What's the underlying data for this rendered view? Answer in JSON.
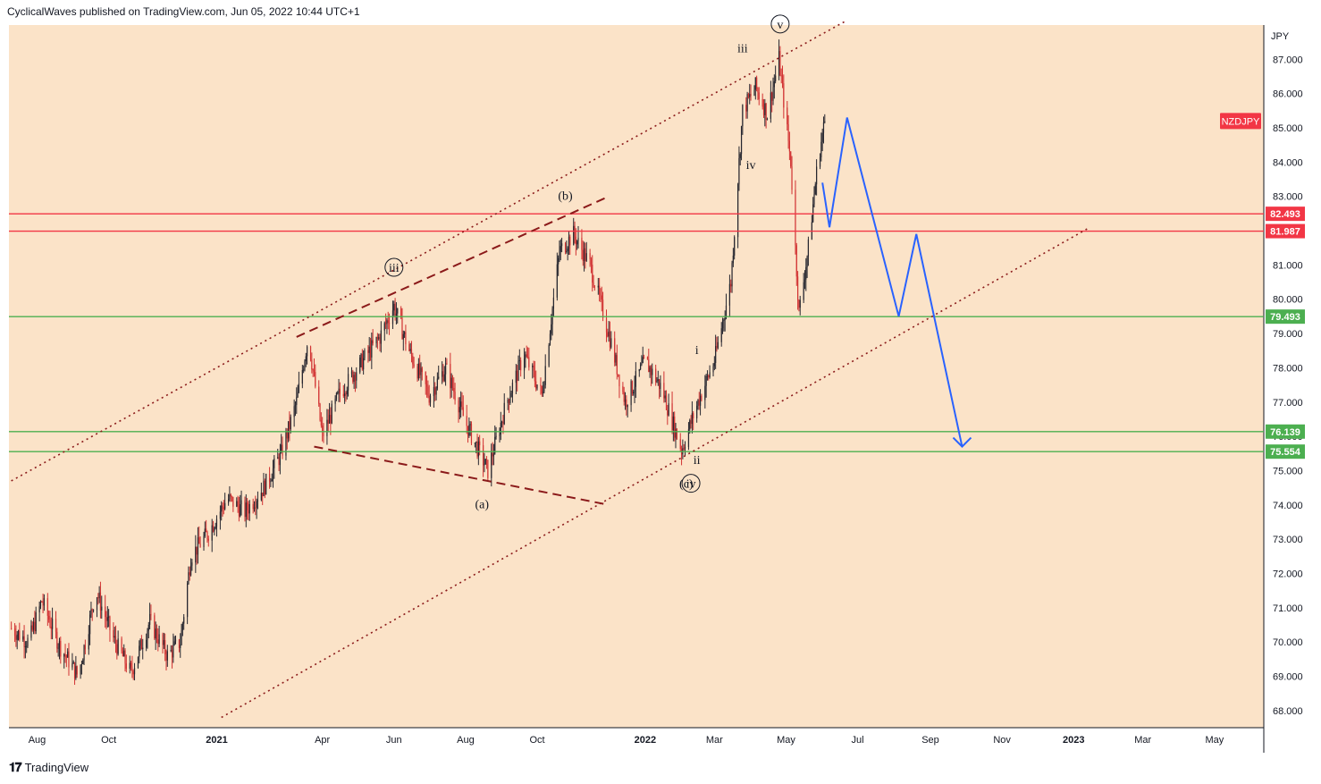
{
  "header": {
    "publisher_line": "CyclicalWaves published on TradingView.com, Jun 05, 2022 10:44 UTC+1"
  },
  "footer": {
    "logo_glyph": "𝟏𝟕",
    "brand": "TradingView"
  },
  "colors": {
    "background": "#fbe3c8",
    "up_candle": "#26262f",
    "down_candle": "#d13232",
    "resistance": "#f23645",
    "support": "#4caf50",
    "projection": "#2962ff",
    "channel": "#8b1a1a"
  },
  "chart_data": {
    "type": "candlestick",
    "symbol_label": "NZDJPY",
    "currency_label": "JPY",
    "ylim": [
      67.5,
      88.0
    ],
    "y_ticks": [
      "68.000",
      "69.000",
      "70.000",
      "71.000",
      "72.000",
      "73.000",
      "74.000",
      "75.000",
      "76.000",
      "77.000",
      "78.000",
      "79.000",
      "80.000",
      "81.000",
      "82.000",
      "83.000",
      "84.000",
      "85.000",
      "86.000",
      "87.000"
    ],
    "x_ticks": [
      {
        "label": "Aug",
        "date": "2020-08-01"
      },
      {
        "label": "Oct",
        "date": "2020-10-01"
      },
      {
        "label": "2021",
        "date": "2021-01-01"
      },
      {
        "label": "Apr",
        "date": "2021-04-01"
      },
      {
        "label": "Jun",
        "date": "2021-06-01"
      },
      {
        "label": "Aug",
        "date": "2021-08-01"
      },
      {
        "label": "Oct",
        "date": "2021-10-01"
      },
      {
        "label": "2022",
        "date": "2022-01-01"
      },
      {
        "label": "Mar",
        "date": "2022-03-01"
      },
      {
        "label": "May",
        "date": "2022-05-01"
      },
      {
        "label": "Jul",
        "date": "2022-07-01"
      },
      {
        "label": "Sep",
        "date": "2022-09-01"
      },
      {
        "label": "Nov",
        "date": "2022-11-01"
      },
      {
        "label": "2023",
        "date": "2023-01-01"
      },
      {
        "label": "Mar",
        "date": "2023-03-01"
      },
      {
        "label": "May",
        "date": "2023-05-01"
      }
    ],
    "price_path": [
      [
        "2020-07-10",
        70.4
      ],
      [
        "2020-07-25",
        70.0
      ],
      [
        "2020-08-05",
        71.2
      ],
      [
        "2020-08-20",
        69.9
      ],
      [
        "2020-09-05",
        69.0
      ],
      [
        "2020-09-20",
        71.5
      ],
      [
        "2020-10-05",
        70.1
      ],
      [
        "2020-10-20",
        69.1
      ],
      [
        "2020-11-05",
        70.6
      ],
      [
        "2020-11-20",
        69.6
      ],
      [
        "2020-12-01",
        70.0
      ],
      [
        "2020-12-10",
        72.5
      ],
      [
        "2020-12-25",
        73.2
      ],
      [
        "2021-01-10",
        74.2
      ],
      [
        "2021-01-25",
        73.8
      ],
      [
        "2021-02-10",
        74.5
      ],
      [
        "2021-02-25",
        75.5
      ],
      [
        "2021-03-10",
        77.0
      ],
      [
        "2021-03-20",
        78.9
      ],
      [
        "2021-04-01",
        76.0
      ],
      [
        "2021-04-15",
        77.2
      ],
      [
        "2021-05-01",
        78.0
      ],
      [
        "2021-05-20",
        78.9
      ],
      [
        "2021-06-01",
        79.8
      ],
      [
        "2021-06-15",
        78.4
      ],
      [
        "2021-07-01",
        77.2
      ],
      [
        "2021-07-15",
        78.0
      ],
      [
        "2021-08-01",
        76.4
      ],
      [
        "2021-08-20",
        75.0
      ],
      [
        "2021-09-05",
        77.0
      ],
      [
        "2021-09-20",
        78.4
      ],
      [
        "2021-10-05",
        77.2
      ],
      [
        "2021-10-20",
        81.4
      ],
      [
        "2021-11-01",
        81.9
      ],
      [
        "2021-11-15",
        81.0
      ],
      [
        "2021-12-01",
        79.0
      ],
      [
        "2021-12-15",
        77.0
      ],
      [
        "2022-01-01",
        78.2
      ],
      [
        "2022-01-15",
        77.4
      ],
      [
        "2022-02-01",
        75.6
      ],
      [
        "2022-02-15",
        77.0
      ],
      [
        "2022-03-01",
        78.2
      ],
      [
        "2022-03-15",
        80.5
      ],
      [
        "2022-03-25",
        85.5
      ],
      [
        "2022-04-05",
        86.2
      ],
      [
        "2022-04-15",
        85.4
      ],
      [
        "2022-04-25",
        87.0
      ],
      [
        "2022-05-05",
        84.0
      ],
      [
        "2022-05-12",
        79.6
      ],
      [
        "2022-05-20",
        81.5
      ],
      [
        "2022-05-28",
        84.0
      ],
      [
        "2022-06-03",
        85.2
      ]
    ],
    "last_price": 85.2,
    "levels": [
      {
        "label": "82.493",
        "value": 82.493,
        "kind": "resistance"
      },
      {
        "label": "81.987",
        "value": 81.987,
        "kind": "resistance"
      },
      {
        "label": "79.493",
        "value": 79.493,
        "kind": "support"
      },
      {
        "label": "76.139",
        "value": 76.139,
        "kind": "support"
      },
      {
        "label": "75.554",
        "value": 75.554,
        "kind": "support"
      }
    ],
    "channel_lines": [
      {
        "style": "dotted",
        "points": [
          [
            "2020-07-10",
            74.7
          ],
          [
            "2022-06-20",
            88.1
          ]
        ]
      },
      {
        "style": "dotted",
        "points": [
          [
            "2021-01-05",
            67.8
          ],
          [
            "2023-01-15",
            82.1
          ]
        ]
      },
      {
        "style": "dashed",
        "points": [
          [
            "2021-03-10",
            78.9
          ],
          [
            "2021-12-01",
            83.0
          ]
        ]
      },
      {
        "style": "dashed",
        "points": [
          [
            "2021-03-25",
            75.7
          ],
          [
            "2021-12-01",
            74.0
          ]
        ]
      }
    ],
    "projection_path": [
      [
        "2022-06-01",
        83.4
      ],
      [
        "2022-06-07",
        82.1
      ],
      [
        "2022-06-22",
        85.3
      ],
      [
        "2022-08-05",
        79.5
      ],
      [
        "2022-08-20",
        81.9
      ],
      [
        "2022-09-28",
        75.7
      ]
    ],
    "wave_labels": [
      {
        "text": "v",
        "date": "2022-04-26",
        "value": 87.9,
        "circled": true
      },
      {
        "text": "iii",
        "date": "2022-03-25",
        "value": 87.2,
        "circled": false
      },
      {
        "text": "iv",
        "date": "2022-04-01",
        "value": 83.8,
        "circled": false
      },
      {
        "text": "(b)",
        "date": "2021-10-25",
        "value": 82.9,
        "circled": false
      },
      {
        "text": "iii",
        "date": "2021-06-01",
        "value": 80.8,
        "circled": true
      },
      {
        "text": "(a)",
        "date": "2021-08-15",
        "value": 73.9,
        "circled": false
      },
      {
        "text": "i",
        "date": "2022-02-14",
        "value": 78.4,
        "circled": false
      },
      {
        "text": "ii",
        "date": "2022-02-14",
        "value": 75.2,
        "circled": false
      },
      {
        "text": "(c)",
        "date": "2022-02-05",
        "value": 74.5,
        "circled": false
      },
      {
        "text": "iv",
        "date": "2022-02-09",
        "value": 74.5,
        "circled": true
      }
    ]
  }
}
